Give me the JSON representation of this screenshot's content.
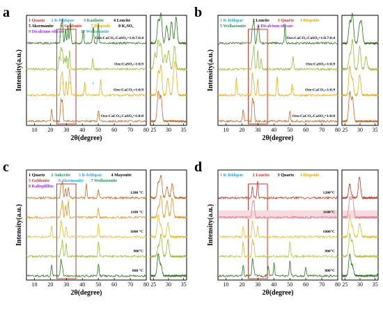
{
  "figure": {
    "panels": [
      {
        "id": "a",
        "legend_items": [
          {
            "text": "1 Quartz",
            "color": "#c0392b"
          },
          {
            "text": "2 K-feldspar",
            "color": "#2e9fd8"
          },
          {
            "text": "3 Kaolinite",
            "color": "#2e8b57"
          },
          {
            "text": "4 Leucite",
            "color": "#000000"
          },
          {
            "text": "5 Akermanite",
            "color": "#000000"
          },
          {
            "text": "6 Gehlenite",
            "color": "#c0392b"
          },
          {
            "text": "7 Diopside",
            "color": "#e0a800"
          },
          {
            "text": "8 K₂SO₄",
            "color": "#000000"
          },
          {
            "text": "9 Dicalcium silicate",
            "color": "#9b30d9"
          },
          {
            "text": "10 Wollastonite",
            "color": "#2e9fd8"
          }
        ],
        "traces": [
          {
            "label": "Ore:CaCO₃:CaSO₄=1:0.7:0.4",
            "color": "#2f6e1e"
          },
          {
            "label": "Ore:CaSO₄=1:0.9",
            "color": "#9ab83a"
          },
          {
            "label": "Ore:CaCO₃=1:0.9",
            "color": "#e0b020"
          },
          {
            "label": "Ore:CaCO₃:CaSO₄=1:0:0",
            "color": "#c06a28"
          }
        ],
        "peak_labels": [
          "1",
          "2",
          "3",
          "4",
          "5",
          "6",
          "7",
          "8",
          "9",
          "10"
        ]
      },
      {
        "id": "b",
        "legend_items": [
          {
            "text": "1 K-feldspar",
            "color": "#2e9fd8"
          },
          {
            "text": "2 Leucite",
            "color": "#000000"
          },
          {
            "text": "3 Quartz",
            "color": "#c0392b"
          },
          {
            "text": "4 Diopside",
            "color": "#e0a800"
          },
          {
            "text": "5 Wollastonite",
            "color": "#2e8b57"
          },
          {
            "text": "6 Dicalcium silicate",
            "color": "#9b30d9"
          }
        ],
        "traces": [
          {
            "label": "Ore:CaCO₃:CaSO₄=1:0.7:0.4",
            "color": "#2f6e1e"
          },
          {
            "label": "Ore:CaSO₄=1:0.9",
            "color": "#9ab83a"
          },
          {
            "label": "Ore:CaCO₃=1:0.9",
            "color": "#e0b020"
          },
          {
            "label": "Ore:CaCO₃:CaSO₄=1:0:0",
            "color": "#c06a28"
          }
        ]
      },
      {
        "id": "c",
        "legend_items": [
          {
            "text": "1 Quartz",
            "color": "#000000"
          },
          {
            "text": "2 Ankerite",
            "color": "#2e8b57"
          },
          {
            "text": "3 K-feldspar",
            "color": "#2e9fd8"
          },
          {
            "text": "4 Mayenite",
            "color": "#000000"
          },
          {
            "text": "5 Gehlenite",
            "color": "#c0392b"
          },
          {
            "text": "6 Akermanite",
            "color": "#2e9fd8"
          },
          {
            "text": "7 Wollastonite",
            "color": "#2e8b57"
          },
          {
            "text": "8 Kalioplillite",
            "color": "#9b30d9"
          }
        ],
        "traces": [
          {
            "label": "1200 °C",
            "color": "#c06a28"
          },
          {
            "label": "1100 °C",
            "color": "#d89a30"
          },
          {
            "label": "1000 °C",
            "color": "#e0c030"
          },
          {
            "label": "900°C",
            "color": "#9ab83a"
          },
          {
            "label": "800 °C",
            "color": "#2f6e1e"
          }
        ]
      },
      {
        "id": "d",
        "legend_items": [
          {
            "text": "1 K-feldspar",
            "color": "#2e9fd8"
          },
          {
            "text": "2 Leucite",
            "color": "#c0392b"
          },
          {
            "text": "3 Quartz",
            "color": "#000000"
          },
          {
            "text": "4 Diopside",
            "color": "#e0a800"
          }
        ],
        "traces": [
          {
            "label": "1200°C",
            "color": "#c0392b"
          },
          {
            "label": "1100°C",
            "color": "#e27a8a"
          },
          {
            "label": "1000°C",
            "color": "#e0c030"
          },
          {
            "label": "900°C",
            "color": "#b5c040"
          },
          {
            "label": "800°C",
            "color": "#2f6e1e"
          }
        ]
      }
    ],
    "common": {
      "ylabel": "Intensity(a.u.)",
      "xlabel": "2θ(degree)",
      "main_xticks": [
        "10",
        "20",
        "30",
        "40",
        "50",
        "60",
        "70",
        "80"
      ],
      "zoom_xticks": [
        "25",
        "30",
        "35"
      ]
    }
  },
  "chart_data": [
    {
      "type": "line",
      "panel": "a",
      "xlabel": "2θ(degree)",
      "ylabel": "Intensity(a.u.)",
      "xlim": [
        5,
        80
      ],
      "zoom_xlim": [
        24,
        36
      ],
      "series": [
        {
          "name": "Ore:CaCO₃:CaSO₄=1:0.7:0.4",
          "peaks_2theta": [
            26.6,
            27.5,
            29.4,
            31.0,
            32.5,
            40.5,
            46.8,
            50.0
          ]
        },
        {
          "name": "Ore:CaSO₄=1:0.9",
          "peaks_2theta": [
            25.5,
            26.6,
            27.5,
            28.8,
            30.0,
            32.0,
            46.5
          ]
        },
        {
          "name": "Ore:CaCO₃=1:0.9",
          "peaks_2theta": [
            26.6,
            27.5,
            29.8,
            31.8,
            32.4,
            41.5,
            51.5
          ]
        },
        {
          "name": "Ore:CaCO₃:CaSO₄=1:0:0",
          "peaks_2theta": [
            20.8,
            26.6,
            27.5,
            50.1
          ]
        }
      ]
    },
    {
      "type": "line",
      "panel": "b",
      "xlabel": "2θ(degree)",
      "ylabel": "Intensity(a.u.)",
      "xlim": [
        5,
        80
      ],
      "zoom_xlim": [
        24,
        36
      ],
      "series": [
        {
          "name": "Ore:CaCO₃:CaSO₄=1:0.7:0.4",
          "peaks_2theta": [
            26.6,
            27.5,
            29.8,
            30.5,
            47.0
          ]
        },
        {
          "name": "Ore:CaSO₄=1:0.9",
          "peaks_2theta": [
            26.6,
            27.5,
            29.9,
            32.0,
            52.0
          ]
        },
        {
          "name": "Ore:CaCO₃=1:0.9",
          "peaks_2theta": [
            16.5,
            26.6,
            27.5,
            29.9,
            42.0,
            51.5
          ]
        },
        {
          "name": "Ore:CaCO₃:CaSO₄=1:0:0",
          "peaks_2theta": [
            20.8,
            26.6,
            27.5,
            50.1
          ]
        }
      ]
    },
    {
      "type": "line",
      "panel": "c",
      "xlabel": "2θ(degree)",
      "ylabel": "Intensity(a.u.)",
      "xlim": [
        5,
        80
      ],
      "zoom_xlim": [
        24,
        36
      ],
      "series": [
        {
          "name": "1200 °C",
          "peaks_2theta": [
            26.6,
            27.5,
            29.5,
            31.2,
            42.5,
            50.0
          ]
        },
        {
          "name": "1100 °C",
          "peaks_2theta": [
            26.6,
            27.5,
            29.5,
            31.2,
            50.0
          ]
        },
        {
          "name": "1000 °C",
          "peaks_2theta": [
            20.8,
            26.6,
            27.5,
            29.8,
            50.1
          ]
        },
        {
          "name": "900°C",
          "peaks_2theta": [
            26.6,
            27.5,
            29.8,
            50.1
          ]
        },
        {
          "name": "800 °C",
          "peaks_2theta": [
            20.8,
            26.6,
            27.5,
            50.1
          ]
        }
      ]
    },
    {
      "type": "line",
      "panel": "d",
      "xlabel": "2θ(degree)",
      "ylabel": "Intensity(a.u.)",
      "xlim": [
        5,
        80
      ],
      "zoom_xlim": [
        24,
        36
      ],
      "series": [
        {
          "name": "1200°C",
          "peaks_2theta": [
            26.6,
            29.8
          ]
        },
        {
          "name": "1100°C",
          "peaks_2theta": [
            26.6,
            27.5
          ]
        },
        {
          "name": "1000°C",
          "peaks_2theta": [
            20.8,
            26.6,
            27.5,
            29.9
          ]
        },
        {
          "name": "900°C",
          "peaks_2theta": [
            20.8,
            26.6,
            27.5,
            50.1
          ]
        },
        {
          "name": "800°C",
          "peaks_2theta": [
            20.8,
            26.6,
            27.5,
            36.5,
            40.2,
            50.1,
            60.0
          ]
        }
      ]
    }
  ]
}
